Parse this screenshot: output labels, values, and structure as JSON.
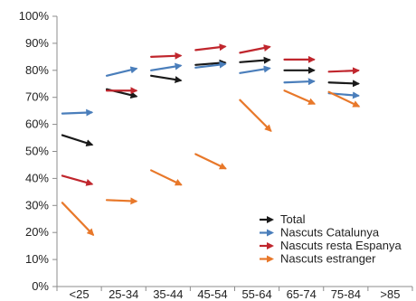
{
  "chart_data": {
    "type": "line",
    "categories": [
      "<25",
      "25-34",
      "35-44",
      "45-54",
      "55-64",
      "65-74",
      "75-84",
      ">85"
    ],
    "y_ticks": [
      "0%",
      "10%",
      "20%",
      "30%",
      "40%",
      "50%",
      "60%",
      "70%",
      "80%",
      "90%",
      "100%"
    ],
    "ylim": [
      0,
      100
    ],
    "grid": false,
    "legend_position": "lower-right",
    "series": [
      {
        "name": "Total",
        "color": "#1a1a1a",
        "segments": [
          [
            56,
            52
          ],
          [
            73,
            70
          ],
          [
            78,
            76
          ],
          [
            82,
            83
          ],
          [
            83,
            84
          ],
          [
            80,
            80
          ],
          [
            75.5,
            75
          ],
          null
        ]
      },
      {
        "name": "Nascuts Catalunya",
        "color": "#4a7ebb",
        "segments": [
          [
            64,
            64.5
          ],
          [
            78,
            81
          ],
          [
            80,
            82
          ],
          [
            81,
            82.5
          ],
          [
            79,
            81
          ],
          [
            75.5,
            76
          ],
          [
            71.5,
            70.5
          ],
          null
        ]
      },
      {
        "name": "Nascuts resta Espanya",
        "color": "#c0262d",
        "segments": [
          [
            41,
            37.5
          ],
          [
            72.5,
            72.5
          ],
          [
            85,
            85.5
          ],
          [
            87.5,
            89
          ],
          [
            86.5,
            89
          ],
          [
            84,
            84
          ],
          [
            79.5,
            80
          ],
          null
        ]
      },
      {
        "name": "Nascuts estranger",
        "color": "#e8782a",
        "segments": [
          [
            31,
            18
          ],
          [
            32,
            31.5
          ],
          [
            43,
            37
          ],
          [
            49,
            43
          ],
          [
            69,
            56.5
          ],
          [
            72.5,
            67
          ],
          [
            72,
            66
          ],
          null
        ]
      }
    ]
  }
}
